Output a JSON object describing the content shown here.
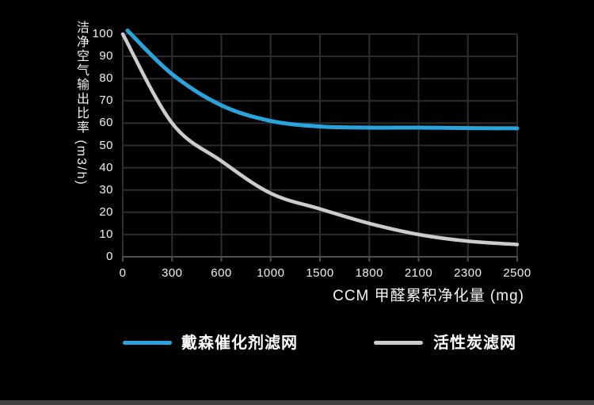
{
  "colors": {
    "background": "#000000",
    "grid": "#2d2d2d",
    "axis": "#4f4f4f",
    "text": "#f0f0f0",
    "series_blue": "#2aa4dc",
    "series_gray": "#cccccc",
    "bottom_strip": "#424242"
  },
  "chart_data": {
    "type": "line",
    "title": "",
    "xlabel": "CCM 甲醛累积净化量 (mg)",
    "ylabel": "洁净空气输出比率 (m3/h)",
    "x_categories": [
      "0",
      "300",
      "600",
      "1000",
      "1500",
      "1800",
      "2100",
      "2300",
      "2500"
    ],
    "y_ticks": [
      "100",
      "90",
      "80",
      "70",
      "60",
      "50",
      "40",
      "30",
      "20",
      "10",
      "0"
    ],
    "ylim": [
      0,
      100
    ],
    "grid": true,
    "legend_position": "bottom",
    "note": "x axis is evenly spaced despite non-uniform category increments",
    "series": [
      {
        "name": "戴森催化剂滤网",
        "color": "#2aa4dc",
        "values": [
          100,
          82,
          68,
          61,
          58.5,
          58,
          58,
          57.8,
          57.7
        ]
      },
      {
        "name": "活性炭滤网",
        "color": "#cccccc",
        "values": [
          100,
          60,
          43,
          28.5,
          21.5,
          15,
          10,
          7,
          5.5
        ]
      }
    ]
  }
}
